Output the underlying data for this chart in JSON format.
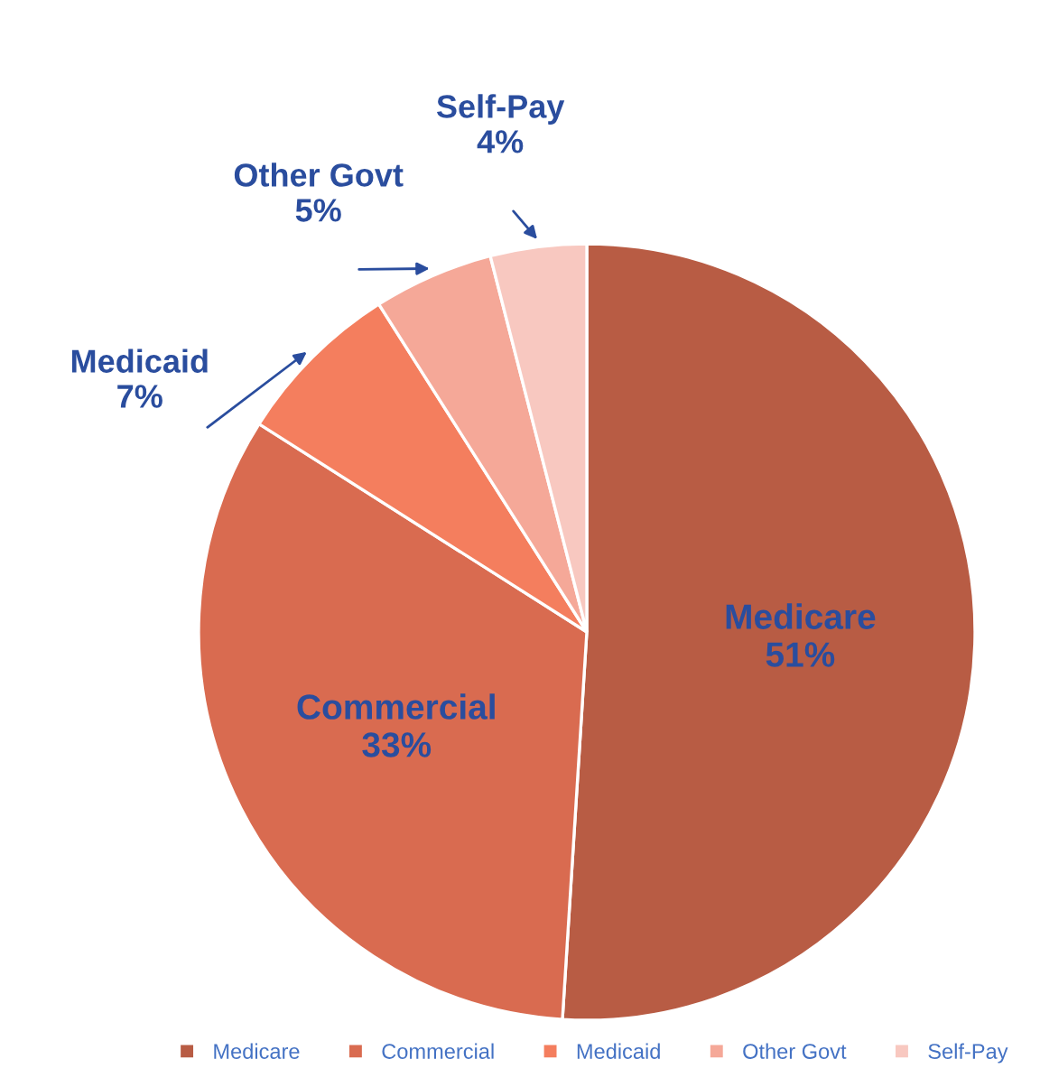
{
  "chart_data": {
    "type": "pie",
    "categories": [
      "Medicare",
      "Commercial",
      "Medicaid",
      "Other Govt",
      "Self-Pay"
    ],
    "values": [
      51,
      33,
      7,
      5,
      4
    ],
    "value_labels": [
      "51%",
      "33%",
      "7%",
      "5%",
      "4%"
    ],
    "colors": [
      "#b85c44",
      "#d96b50",
      "#f47e5e",
      "#f5a898",
      "#f8c8c0"
    ],
    "legend": "bottom"
  }
}
